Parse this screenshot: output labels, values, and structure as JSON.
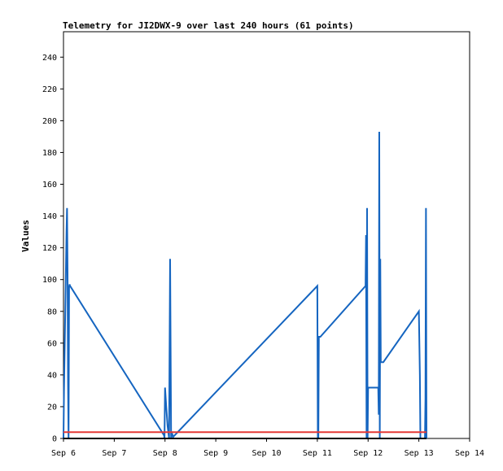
{
  "chart_data": {
    "type": "line",
    "title": "Telemetry for JI2DWX-9 over last 240 hours (61 points)",
    "xlabel": "",
    "ylabel": "Values",
    "xlim": [
      0,
      8
    ],
    "ylim": [
      0,
      256
    ],
    "xticks": [
      {
        "value": 0,
        "label": "Sep 6"
      },
      {
        "value": 1,
        "label": "Sep 7"
      },
      {
        "value": 2,
        "label": "Sep 8"
      },
      {
        "value": 3,
        "label": "Sep 9"
      },
      {
        "value": 4,
        "label": "Sep 10"
      },
      {
        "value": 5,
        "label": "Sep 11"
      },
      {
        "value": 6,
        "label": "Sep 12"
      },
      {
        "value": 7,
        "label": "Sep 13"
      },
      {
        "value": 8,
        "label": "Sep 14"
      }
    ],
    "yticks": [
      0,
      20,
      40,
      60,
      80,
      100,
      120,
      140,
      160,
      180,
      200,
      220,
      240
    ],
    "grid": false,
    "legend": "none",
    "series": [
      {
        "color": "#1565c0",
        "x": [
          0.0,
          0.01,
          0.02,
          0.03,
          0.04,
          0.05,
          0.06,
          0.07,
          0.08,
          0.09,
          0.1,
          0.11,
          0.12,
          0.13,
          0.15,
          1.98,
          1.99,
          2.0,
          2.02,
          2.05,
          2.08,
          2.1,
          2.12,
          2.13,
          2.14,
          2.15,
          2.16,
          5.0,
          5.01,
          5.02,
          5.03,
          5.04,
          5.05,
          5.06,
          5.95,
          5.96,
          5.97,
          5.98,
          5.99,
          6.0,
          6.01,
          6.02,
          6.2,
          6.21,
          6.22,
          6.23,
          6.24,
          6.25,
          6.26,
          6.27,
          6.28,
          6.29,
          6.3,
          7.0,
          7.02,
          7.03,
          7.04,
          7.12,
          7.13,
          7.14,
          7.15
        ],
        "y": [
          0,
          30,
          50,
          70,
          90,
          110,
          130,
          145,
          105,
          35,
          0,
          95,
          97,
          96,
          95,
          2,
          0,
          32,
          22,
          8,
          0,
          113,
          0,
          2,
          3,
          2,
          1,
          96,
          0,
          0,
          64,
          64,
          64,
          64,
          96,
          128,
          0,
          145,
          0,
          32,
          32,
          32,
          32,
          15,
          193,
          0,
          113,
          48,
          48,
          48,
          48,
          48,
          48,
          80,
          40,
          0,
          0,
          0,
          25,
          145,
          0
        ]
      },
      {
        "color": "#e53935",
        "x": [
          0.0,
          7.15
        ],
        "y": [
          4,
          4
        ]
      },
      {
        "color": "#000000",
        "x": [
          0.0,
          7.15
        ],
        "y": [
          0,
          0
        ]
      }
    ]
  }
}
